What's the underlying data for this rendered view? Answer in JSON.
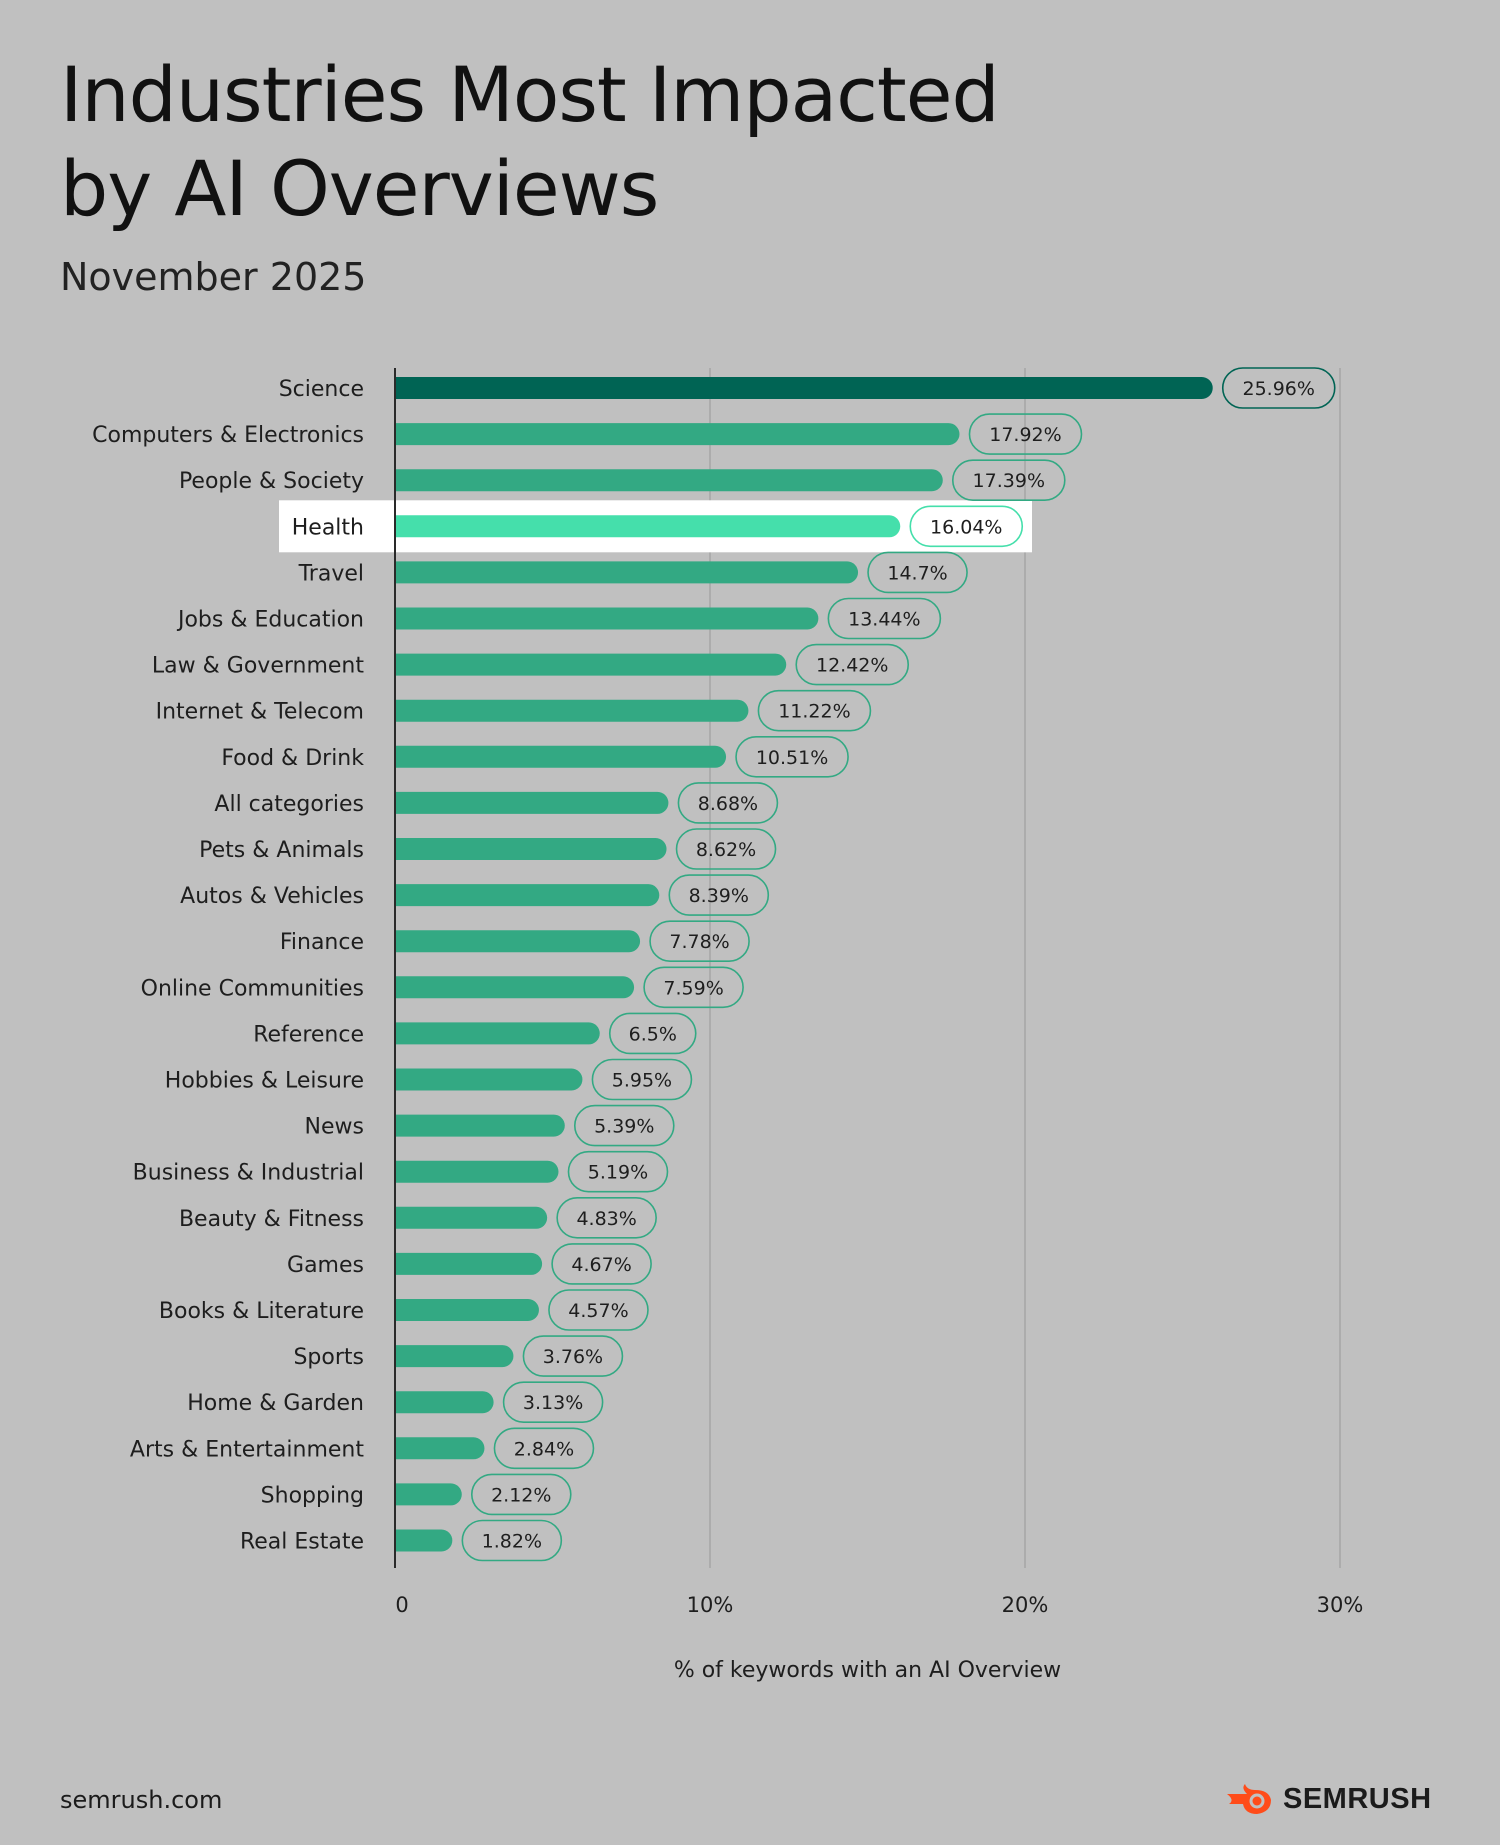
{
  "title_line1": "Industries Most Impacted",
  "title_line2": "by AI Overviews",
  "subtitle": "November 2025",
  "footer": {
    "url": "semrush.com",
    "brand": "SEMRUSH"
  },
  "colors": {
    "background": "#c0c0c0",
    "top_bar": "#006454",
    "bar": "#33a983",
    "highlight_bar": "#45dfab",
    "highlight_band": "#ffffff",
    "brand": "#ff4c1a"
  },
  "chart_data": {
    "type": "bar",
    "orientation": "horizontal",
    "xlabel": "% of keywords with an AI Overview",
    "ylabel": "",
    "xlim": [
      0,
      30
    ],
    "xticks": [
      0,
      10,
      20,
      30
    ],
    "xtick_labels": [
      "0",
      "10%",
      "20%",
      "30%"
    ],
    "grid": true,
    "highlight": "Health",
    "categories": [
      "Science",
      "Computers & Electronics",
      "People & Society",
      "Health",
      "Travel",
      "Jobs & Education",
      "Law & Government",
      "Internet & Telecom",
      "Food & Drink",
      "All categories",
      "Pets & Animals",
      "Autos & Vehicles",
      "Finance",
      "Online Communities",
      "Reference",
      "Hobbies & Leisure",
      "News",
      "Business & Industrial",
      "Beauty & Fitness",
      "Games",
      "Books & Literature",
      "Sports",
      "Home & Garden",
      "Arts & Entertainment",
      "Shopping",
      "Real Estate"
    ],
    "values": [
      25.96,
      17.92,
      17.39,
      16.04,
      14.7,
      13.44,
      12.42,
      11.22,
      10.51,
      8.68,
      8.62,
      8.39,
      7.78,
      7.59,
      6.5,
      5.95,
      5.39,
      5.19,
      4.83,
      4.67,
      4.57,
      3.76,
      3.13,
      2.84,
      2.12,
      1.82
    ],
    "value_labels": [
      "25.96%",
      "17.92%",
      "17.39%",
      "16.04%",
      "14.7%",
      "13.44%",
      "12.42%",
      "11.22%",
      "10.51%",
      "8.68%",
      "8.62%",
      "8.39%",
      "7.78%",
      "7.59%",
      "6.5%",
      "5.95%",
      "5.39%",
      "5.19%",
      "4.83%",
      "4.67%",
      "4.57%",
      "3.76%",
      "3.13%",
      "2.84%",
      "2.12%",
      "1.82%"
    ]
  }
}
